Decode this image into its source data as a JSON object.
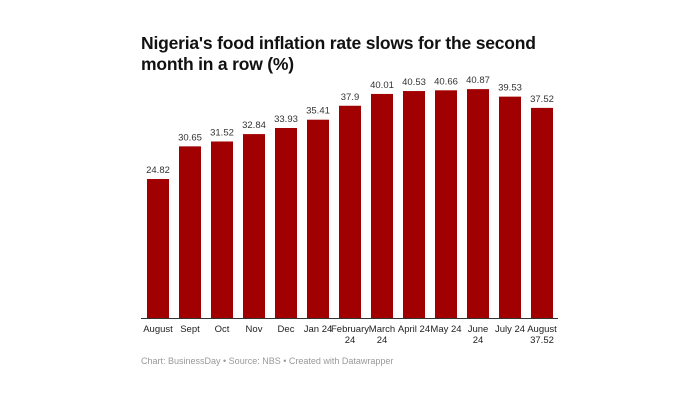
{
  "chart_data": {
    "type": "bar",
    "title": "Nigeria's food inflation rate slows for the second month in a row (%)",
    "categories": [
      "August",
      "Sept",
      "Oct",
      "Nov",
      "Dec",
      "Jan 24",
      "February 24",
      "March 24",
      "April 24",
      "May 24",
      "June 24",
      "July 24",
      "August 37.52"
    ],
    "values": [
      24.82,
      30.65,
      31.52,
      32.84,
      33.93,
      35.41,
      37.9,
      40.01,
      40.53,
      40.66,
      40.87,
      39.53,
      37.52
    ],
    "value_labels": [
      "24.82",
      "30.65",
      "31.52",
      "32.84",
      "33.93",
      "35.41",
      "37.9",
      "40.01",
      "40.53",
      "40.66",
      "40.87",
      "39.53",
      "37.52"
    ],
    "ylim": [
      0,
      41
    ],
    "grid": false,
    "bar_color": "#a10000",
    "xlabel": "",
    "ylabel": ""
  },
  "footer": "Chart: BusinessDay • Source: NBS • Created with Datawrapper"
}
